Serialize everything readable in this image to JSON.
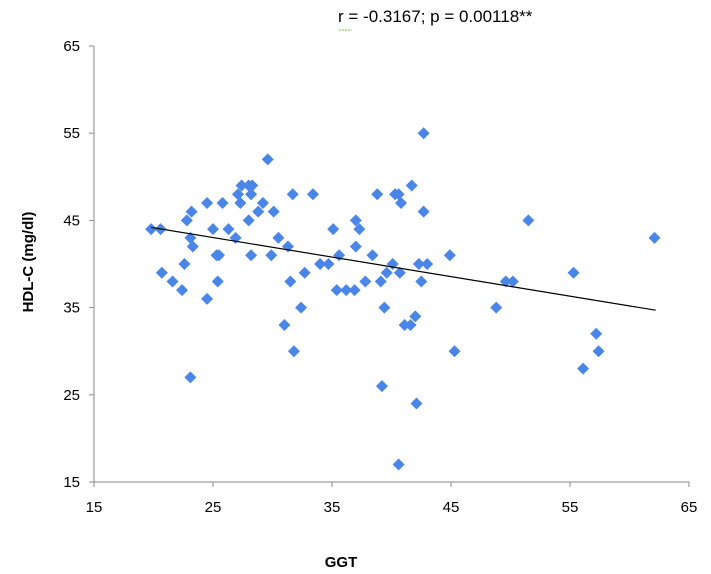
{
  "chart_data": {
    "type": "scatter",
    "annotation": "r = -0.3167; p = 0.00118**",
    "xlabel": "GGT",
    "ylabel": "HDL-C (mg/dl)",
    "xlim": [
      15,
      65
    ],
    "ylim": [
      15,
      65
    ],
    "xticks": [
      "15",
      "25",
      "35",
      "45",
      "55",
      "65"
    ],
    "yticks": [
      "15",
      "25",
      "35",
      "45",
      "55",
      "65"
    ],
    "grid": false,
    "legend": "none",
    "marker_color": "#4a86e8",
    "trendline": {
      "x": [
        19.8,
        62.2
      ],
      "y": [
        44.2,
        34.7
      ],
      "color": "#000000"
    },
    "points": [
      [
        19.8,
        44
      ],
      [
        20.6,
        44
      ],
      [
        20.7,
        39
      ],
      [
        21.6,
        38
      ],
      [
        22.4,
        37
      ],
      [
        22.6,
        40
      ],
      [
        22.8,
        45
      ],
      [
        23.1,
        43
      ],
      [
        23.2,
        46
      ],
      [
        23.3,
        42
      ],
      [
        23.1,
        27
      ],
      [
        24.5,
        47
      ],
      [
        24.5,
        36
      ],
      [
        25.0,
        44
      ],
      [
        25.3,
        41
      ],
      [
        25.4,
        38
      ],
      [
        25.5,
        41
      ],
      [
        25.8,
        47
      ],
      [
        26.3,
        44
      ],
      [
        26.9,
        43
      ],
      [
        27.1,
        48
      ],
      [
        27.3,
        47
      ],
      [
        27.4,
        49
      ],
      [
        28.0,
        49
      ],
      [
        28.0,
        45
      ],
      [
        28.2,
        41
      ],
      [
        28.2,
        48
      ],
      [
        28.3,
        49
      ],
      [
        28.8,
        46
      ],
      [
        29.2,
        47
      ],
      [
        29.6,
        52
      ],
      [
        29.9,
        41
      ],
      [
        30.1,
        46
      ],
      [
        30.5,
        43
      ],
      [
        31.0,
        33
      ],
      [
        31.3,
        42
      ],
      [
        31.5,
        38
      ],
      [
        31.7,
        48
      ],
      [
        31.8,
        30
      ],
      [
        32.4,
        35
      ],
      [
        32.7,
        39
      ],
      [
        33.4,
        48
      ],
      [
        34.0,
        40
      ],
      [
        34.7,
        40
      ],
      [
        35.1,
        44
      ],
      [
        35.4,
        37
      ],
      [
        35.6,
        41
      ],
      [
        36.2,
        37
      ],
      [
        36.9,
        37
      ],
      [
        37.0,
        42
      ],
      [
        37.0,
        45
      ],
      [
        37.3,
        44
      ],
      [
        37.8,
        38
      ],
      [
        38.4,
        41
      ],
      [
        38.8,
        48
      ],
      [
        39.1,
        38
      ],
      [
        39.2,
        26
      ],
      [
        39.4,
        35
      ],
      [
        39.6,
        39
      ],
      [
        40.1,
        40
      ],
      [
        40.3,
        48
      ],
      [
        40.6,
        48
      ],
      [
        40.6,
        17
      ],
      [
        40.7,
        39
      ],
      [
        40.8,
        47
      ],
      [
        41.1,
        33
      ],
      [
        41.6,
        33
      ],
      [
        41.7,
        49
      ],
      [
        42.0,
        34
      ],
      [
        42.1,
        24
      ],
      [
        42.3,
        40
      ],
      [
        42.5,
        38
      ],
      [
        42.7,
        55
      ],
      [
        42.7,
        46
      ],
      [
        43.0,
        40
      ],
      [
        44.9,
        41
      ],
      [
        45.3,
        30
      ],
      [
        48.8,
        35
      ],
      [
        49.6,
        38
      ],
      [
        50.2,
        38
      ],
      [
        51.5,
        45
      ],
      [
        55.3,
        39
      ],
      [
        56.1,
        28
      ],
      [
        57.2,
        32
      ],
      [
        57.4,
        30
      ],
      [
        62.1,
        43
      ]
    ]
  }
}
